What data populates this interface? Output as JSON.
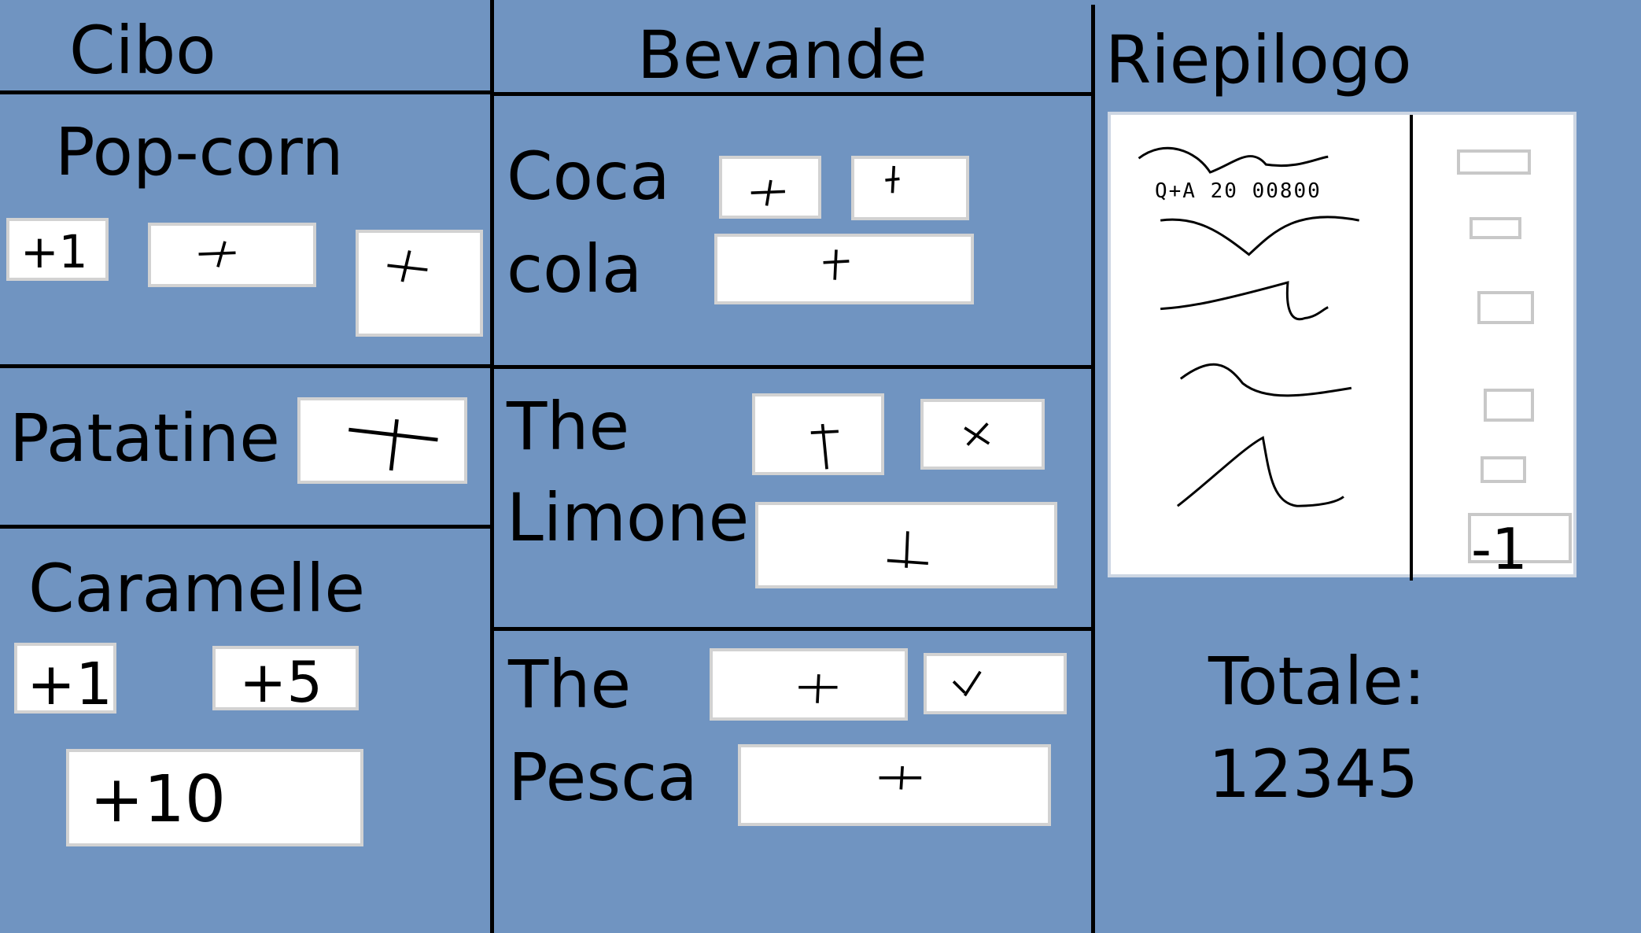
{
  "headers": {
    "cibo": "Cibo",
    "bevande": "Bevande",
    "riepilogo": "Riepilogo"
  },
  "cibo": {
    "popcorn": {
      "label": "Pop-corn",
      "btn1": "+1"
    },
    "patatine": {
      "label": "Patatine"
    },
    "caramelle": {
      "label": "Caramelle",
      "btn1": "+1",
      "btn5": "+5",
      "btn10": "+10"
    }
  },
  "bevande": {
    "coca": {
      "line1": "Coca",
      "line2": "cola"
    },
    "the_limone": {
      "line1": "The",
      "line2": "Limone"
    },
    "the_pesca": {
      "line1": "The",
      "line2": "Pesca"
    }
  },
  "riepilogo": {
    "scribble_text": "Q+A 20 00800",
    "minus_button": "-1"
  },
  "totale": {
    "label": "Totale:",
    "value": "12345"
  }
}
